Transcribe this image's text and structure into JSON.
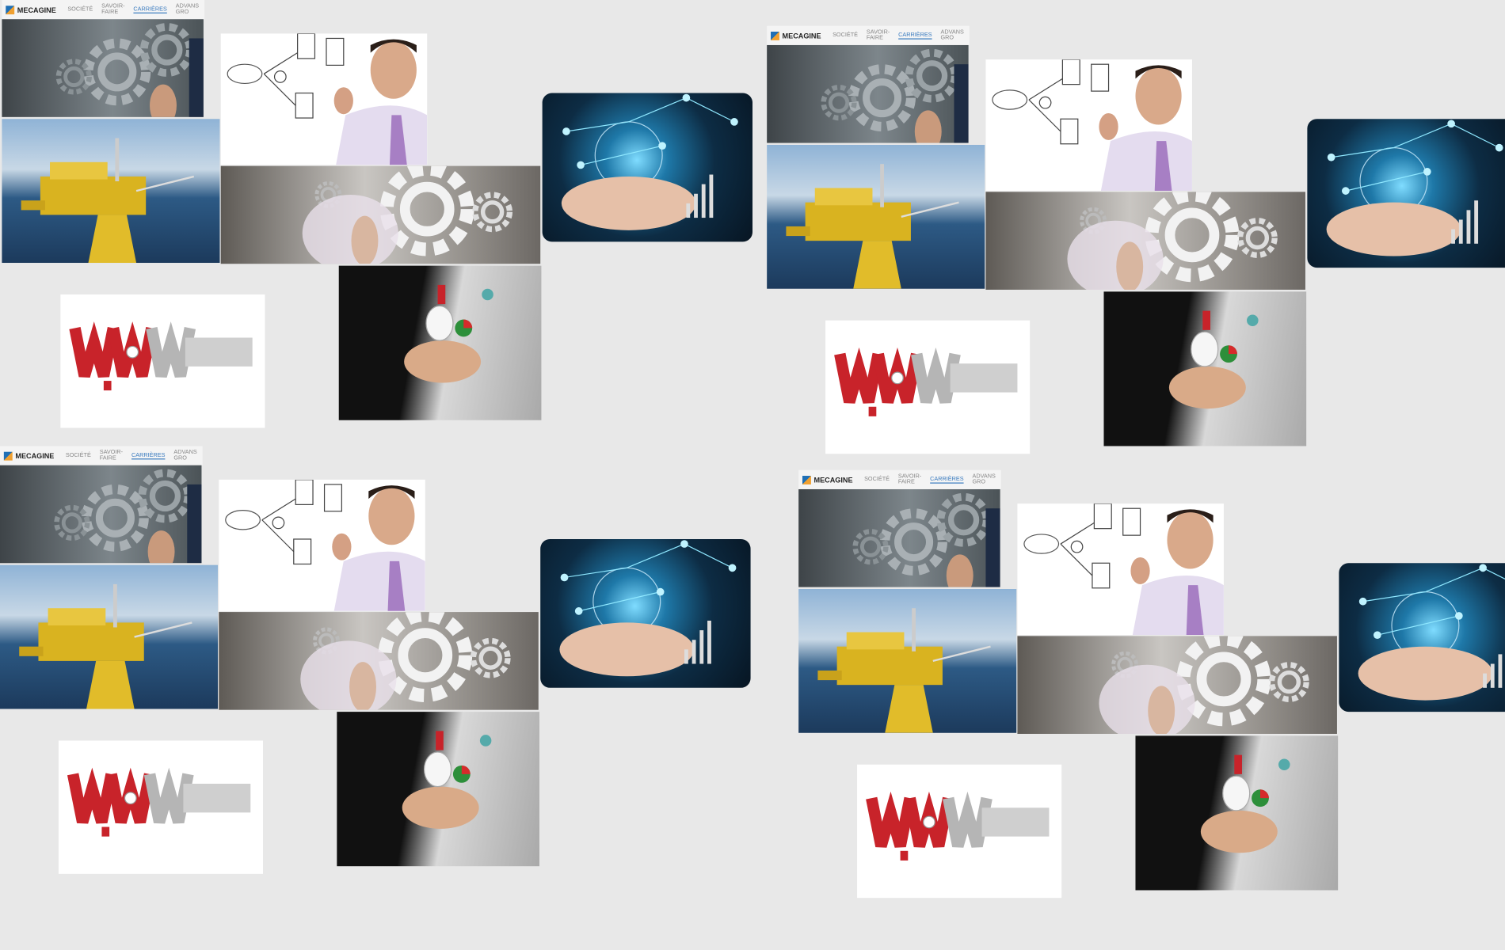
{
  "clusters": [
    {
      "header": {
        "logo": "MECAGINE",
        "nav": [
          "SOCIÉTÉ",
          "SAVOIR-FAIRE",
          "CARRIÈRES",
          "ADVANS GRO"
        ]
      }
    },
    {
      "header": {
        "logo": "MECAGINE",
        "nav": [
          "SOCIÉTÉ",
          "SAVOIR-FAIRE",
          "CARRIÈRES",
          "ADVANS GRO"
        ]
      }
    },
    {
      "header": {
        "logo": "MECAGINE",
        "nav": [
          "SOCIÉTÉ",
          "SAVOIR-FAIRE",
          "CARRIÈRES",
          "ADVANS GRO"
        ]
      }
    },
    {
      "header": {
        "logo": "MECAGINE",
        "nav": [
          "SOCIÉTÉ",
          "SAVOIR-FAIRE",
          "CARRIÈRES",
          "ADVANS GRO"
        ]
      }
    }
  ]
}
